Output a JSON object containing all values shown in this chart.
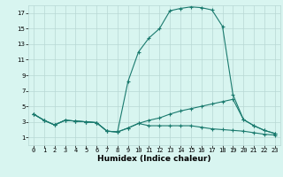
{
  "xlabel": "Humidex (Indice chaleur)",
  "x_values": [
    0,
    1,
    2,
    3,
    4,
    5,
    6,
    7,
    8,
    9,
    10,
    11,
    12,
    13,
    14,
    15,
    16,
    17,
    18,
    19,
    20,
    21,
    22,
    23
  ],
  "line1": [
    4.0,
    3.2,
    2.6,
    3.2,
    3.1,
    3.0,
    2.9,
    1.8,
    1.7,
    8.2,
    12.0,
    13.8,
    15.0,
    17.3,
    17.6,
    17.8,
    17.7,
    17.4,
    15.3,
    6.5,
    3.3,
    2.5,
    1.9,
    1.5
  ],
  "line2": [
    4.0,
    3.2,
    2.6,
    3.2,
    3.1,
    3.0,
    2.9,
    1.8,
    1.7,
    2.2,
    2.8,
    3.2,
    3.5,
    4.0,
    4.4,
    4.7,
    5.0,
    5.3,
    5.6,
    5.9,
    3.3,
    2.5,
    1.9,
    1.5
  ],
  "line3": [
    4.0,
    3.2,
    2.6,
    3.2,
    3.1,
    3.0,
    2.9,
    1.8,
    1.7,
    2.2,
    2.8,
    2.5,
    2.5,
    2.5,
    2.5,
    2.5,
    2.3,
    2.1,
    2.0,
    1.9,
    1.8,
    1.6,
    1.4,
    1.3
  ],
  "line_color": "#1a7a6e",
  "bg_color": "#d8f5f0",
  "grid_color": "#b8d8d4",
  "ylim": [
    0,
    18
  ],
  "xlim": [
    -0.5,
    23.5
  ],
  "yticks": [
    1,
    3,
    5,
    7,
    9,
    11,
    13,
    15,
    17
  ],
  "xticks": [
    0,
    1,
    2,
    3,
    4,
    5,
    6,
    7,
    8,
    9,
    10,
    11,
    12,
    13,
    14,
    15,
    16,
    17,
    18,
    19,
    20,
    21,
    22,
    23
  ],
  "xlabel_fontsize": 6.5,
  "tick_fontsize": 5.0,
  "linewidth": 0.8,
  "markersize": 3.5
}
